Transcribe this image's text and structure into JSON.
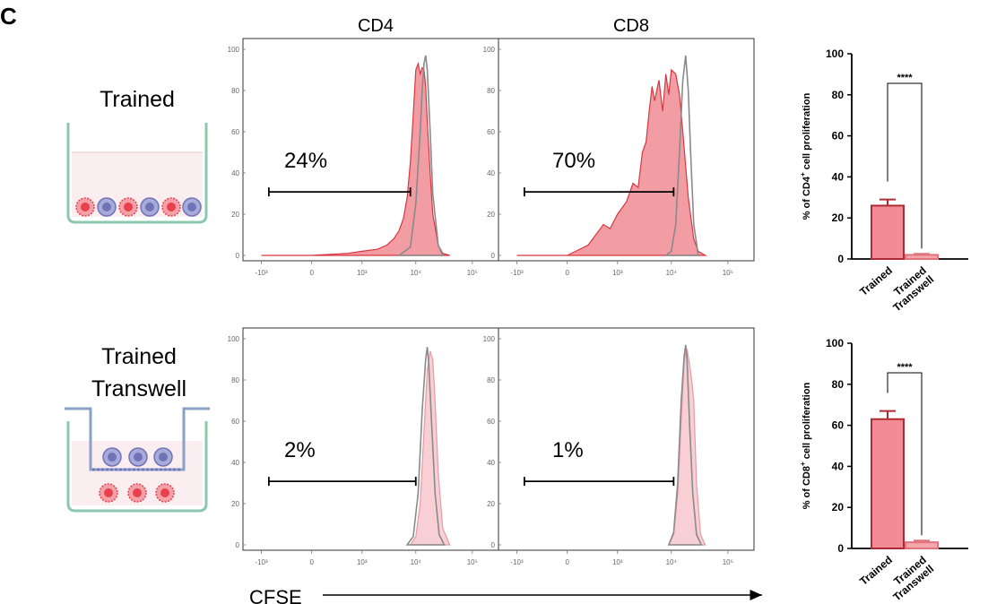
{
  "panel_letter": "C",
  "row_labels": [
    [
      "Trained"
    ],
    [
      "Trained",
      "Transwell"
    ]
  ],
  "column_labels": [
    "CD4",
    "CD8"
  ],
  "x_axis_label": "CFSE",
  "colors": {
    "trained_fill": "#f08c94",
    "trained_line": "#d9363f",
    "transwell_fill": "#f7c7cc",
    "control_line": "#8a8a8a",
    "bar_trained_fill": "#f28b93",
    "bar_trained_edge": "#b02a33",
    "bar_transwell_fill": "#f3a7ad",
    "bar_transwell_edge": "#e0737c",
    "well_fill": "#fbeef0",
    "well_edge": "#8ec7b0",
    "insert_edge": "#8aa0c8",
    "dc_cell": "#e8404d",
    "t_cell": "#6f73b8"
  },
  "chart_data": [
    {
      "type": "area",
      "id": "hist-cd4-trained",
      "column": "CD4",
      "row": "Trained",
      "gate_label": "24%",
      "gate_range": [
        -700,
        8000
      ],
      "xticks": [
        "-10³",
        "0",
        "10³",
        "10⁴",
        "10⁵"
      ],
      "yticks": [
        "0",
        "20",
        "40",
        "60",
        "80",
        "100"
      ],
      "ylim": [
        0,
        100
      ],
      "series": [
        {
          "name": "",
          "x": [
            -1000,
            0,
            500,
            1000,
            2000,
            3000,
            4000,
            5000,
            6000,
            7000,
            8000,
            9000,
            10000,
            11000,
            12000,
            13000,
            14000,
            15000,
            16000,
            18000,
            20000,
            25000,
            30000,
            40000
          ],
          "values": [
            0,
            0,
            1,
            2,
            3,
            5,
            8,
            12,
            18,
            28,
            45,
            68,
            90,
            93,
            88,
            91,
            90,
            82,
            65,
            40,
            20,
            5,
            1,
            0
          ]
        },
        {
          "name": "",
          "x": [
            5000,
            8000,
            10000,
            12000,
            13000,
            14000,
            15000,
            16000,
            18000,
            20000,
            25000,
            30000
          ],
          "values": [
            0,
            4,
            25,
            60,
            80,
            93,
            97,
            90,
            60,
            30,
            5,
            0
          ]
        }
      ]
    },
    {
      "type": "area",
      "id": "hist-cd8-trained",
      "column": "CD8",
      "row": "Trained",
      "gate_label": "70%",
      "gate_range": [
        -700,
        11000
      ],
      "xticks": [
        "-10³",
        "0",
        "10³",
        "10⁴",
        "10⁵"
      ],
      "yticks": [
        "0",
        "20",
        "40",
        "60",
        "80",
        "100"
      ],
      "ylim": [
        0,
        100
      ],
      "series": [
        {
          "name": "",
          "x": [
            -1000,
            0,
            200,
            500,
            700,
            1000,
            1500,
            2000,
            2500,
            3000,
            3500,
            4000,
            4500,
            5000,
            6000,
            7000,
            8000,
            9000,
            10000,
            12000,
            14000,
            16000,
            20000,
            25000,
            30000,
            40000
          ],
          "values": [
            0,
            0,
            5,
            15,
            13,
            20,
            26,
            35,
            33,
            50,
            55,
            70,
            82,
            75,
            85,
            70,
            88,
            78,
            90,
            88,
            78,
            60,
            28,
            8,
            2,
            0
          ]
        },
        {
          "name": "",
          "x": [
            8000,
            10000,
            12000,
            14000,
            16000,
            18000,
            20000,
            22000,
            25000,
            30000
          ],
          "values": [
            0,
            2,
            15,
            50,
            85,
            97,
            80,
            50,
            15,
            0
          ]
        }
      ]
    },
    {
      "type": "area",
      "id": "hist-cd4-transwell",
      "column": "CD4",
      "row": "Trained Transwell",
      "gate_label": "2%",
      "gate_range": [
        -700,
        10000
      ],
      "xticks": [
        "-10³",
        "0",
        "10³",
        "10⁴",
        "10⁵"
      ],
      "yticks": [
        "0",
        "20",
        "40",
        "60",
        "80",
        "100"
      ],
      "ylim": [
        0,
        100
      ],
      "series": [
        {
          "name": "",
          "x": [
            8000,
            10000,
            12000,
            14000,
            16000,
            18000,
            20000,
            22000,
            25000,
            30000,
            40000
          ],
          "values": [
            0,
            4,
            20,
            55,
            85,
            94,
            90,
            70,
            35,
            8,
            0
          ]
        },
        {
          "name": "",
          "x": [
            7000,
            9000,
            11000,
            13000,
            15000,
            16000,
            17000,
            19000,
            22000,
            26000,
            32000
          ],
          "values": [
            0,
            4,
            25,
            65,
            90,
            96,
            88,
            60,
            25,
            5,
            0
          ]
        }
      ]
    },
    {
      "type": "area",
      "id": "hist-cd8-transwell",
      "column": "CD8",
      "row": "Trained Transwell",
      "gate_label": "1%",
      "gate_range": [
        -700,
        11000
      ],
      "xticks": [
        "-10³",
        "0",
        "10³",
        "10⁴",
        "10⁵"
      ],
      "yticks": [
        "0",
        "20",
        "40",
        "60",
        "80",
        "100"
      ],
      "ylim": [
        0,
        100
      ],
      "series": [
        {
          "name": "",
          "x": [
            9000,
            11000,
            13000,
            15000,
            17000,
            19000,
            21000,
            23000,
            25000,
            28000,
            33000,
            40000
          ],
          "values": [
            0,
            5,
            25,
            60,
            90,
            95,
            88,
            80,
            70,
            30,
            5,
            0
          ]
        },
        {
          "name": "",
          "x": [
            9000,
            11000,
            13000,
            15000,
            17000,
            18000,
            19000,
            21000,
            24000,
            28000,
            34000
          ],
          "values": [
            0,
            6,
            30,
            70,
            92,
            97,
            90,
            60,
            25,
            5,
            0
          ]
        }
      ]
    },
    {
      "type": "bar",
      "id": "bar-cd4",
      "categories": [
        "Trained",
        "Trained\nTranswell"
      ],
      "values": [
        26,
        2
      ],
      "errors": [
        3,
        0.5
      ],
      "ylabel_parts": [
        "% of CD4",
        "+",
        " cell proliferation"
      ],
      "ylim": [
        0,
        100
      ],
      "yticks": [
        "0",
        "20",
        "40",
        "60",
        "80",
        "100"
      ],
      "significance": "****"
    },
    {
      "type": "bar",
      "id": "bar-cd8",
      "categories": [
        "Trained",
        "Trained\nTranswell"
      ],
      "values": [
        63,
        3
      ],
      "errors": [
        4,
        0.8
      ],
      "ylabel_parts": [
        "% of CD8",
        "+",
        " cell proliferation"
      ],
      "ylim": [
        0,
        100
      ],
      "yticks": [
        "0",
        "20",
        "40",
        "60",
        "80",
        "100"
      ],
      "significance": "****"
    }
  ]
}
